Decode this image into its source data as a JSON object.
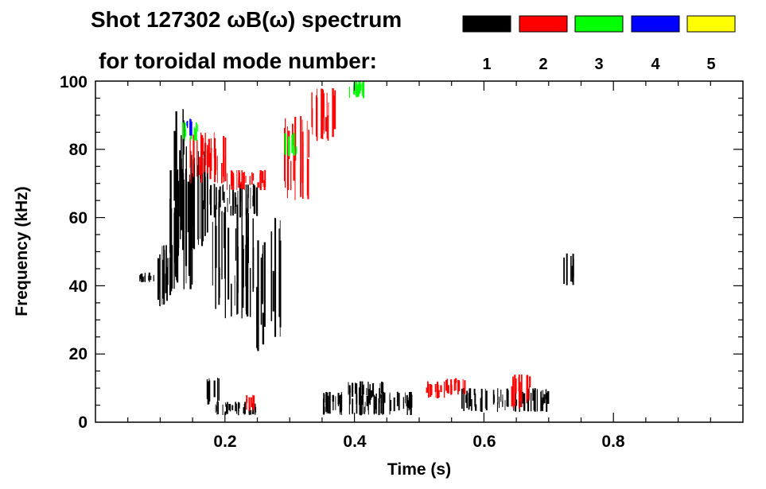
{
  "chart_data": {
    "type": "heatmap",
    "title_line1": "Shot 127302 ωB(ω) spectrum",
    "title_line2": "for toroidal mode number:",
    "xlabel": "Time (s)",
    "ylabel": "Frequency (kHz)",
    "xlim": [
      0.0,
      1.0
    ],
    "ylim": [
      0,
      100
    ],
    "x_ticks": [
      0.2,
      0.4,
      0.6,
      0.8
    ],
    "x_tick_labels": [
      "0.2",
      "0.4",
      "0.6",
      "0.8"
    ],
    "y_ticks": [
      0,
      20,
      40,
      60,
      80,
      100
    ],
    "y_tick_labels": [
      "0",
      "20",
      "40",
      "60",
      "80",
      "100"
    ],
    "legend": [
      {
        "label": "1",
        "color": "#000000"
      },
      {
        "label": "2",
        "color": "#ff0000"
      },
      {
        "label": "3",
        "color": "#00ff00"
      },
      {
        "label": "4",
        "color": "#0000ff"
      },
      {
        "label": "5",
        "color": "#ffff00"
      }
    ],
    "legend_placement": "top-right",
    "grid": false,
    "regions": [
      {
        "mode": 1,
        "t0": 0.065,
        "t1": 0.09,
        "f0": 41,
        "f1": 44
      },
      {
        "mode": 1,
        "t0": 0.09,
        "t1": 0.12,
        "f0": 34,
        "f1": 52
      },
      {
        "mode": 1,
        "t0": 0.11,
        "t1": 0.16,
        "f0": 38,
        "f1": 75
      },
      {
        "mode": 1,
        "t0": 0.12,
        "t1": 0.14,
        "f0": 55,
        "f1": 92
      },
      {
        "mode": 1,
        "t0": 0.14,
        "t1": 0.175,
        "f0": 50,
        "f1": 80
      },
      {
        "mode": 1,
        "t0": 0.175,
        "t1": 0.25,
        "f0": 60,
        "f1": 70
      },
      {
        "mode": 1,
        "t0": 0.18,
        "t1": 0.245,
        "f0": 30,
        "f1": 65
      },
      {
        "mode": 1,
        "t0": 0.245,
        "t1": 0.262,
        "f0": 20,
        "f1": 55
      },
      {
        "mode": 1,
        "t0": 0.268,
        "t1": 0.285,
        "f0": 25,
        "f1": 60
      },
      {
        "mode": 1,
        "t0": 0.17,
        "t1": 0.19,
        "f0": 5,
        "f1": 14
      },
      {
        "mode": 1,
        "t0": 0.185,
        "t1": 0.25,
        "f0": 2,
        "f1": 6
      },
      {
        "mode": 1,
        "t0": 0.35,
        "t1": 0.49,
        "f0": 2,
        "f1": 9
      },
      {
        "mode": 1,
        "t0": 0.385,
        "t1": 0.445,
        "f0": 5,
        "f1": 12
      },
      {
        "mode": 1,
        "t0": 0.56,
        "t1": 0.7,
        "f0": 3,
        "f1": 10
      },
      {
        "mode": 1,
        "t0": 0.72,
        "t1": 0.74,
        "f0": 40,
        "f1": 50
      },
      {
        "mode": 2,
        "t0": 0.14,
        "t1": 0.2,
        "f0": 70,
        "f1": 85
      },
      {
        "mode": 2,
        "t0": 0.2,
        "t1": 0.265,
        "f0": 68,
        "f1": 74
      },
      {
        "mode": 2,
        "t0": 0.29,
        "t1": 0.33,
        "f0": 65,
        "f1": 90
      },
      {
        "mode": 2,
        "t0": 0.33,
        "t1": 0.37,
        "f0": 82,
        "f1": 98
      },
      {
        "mode": 2,
        "t0": 0.51,
        "t1": 0.54,
        "f0": 7,
        "f1": 12
      },
      {
        "mode": 2,
        "t0": 0.54,
        "t1": 0.57,
        "f0": 8,
        "f1": 13
      },
      {
        "mode": 2,
        "t0": 0.64,
        "t1": 0.67,
        "f0": 4,
        "f1": 14
      },
      {
        "mode": 2,
        "t0": 0.23,
        "t1": 0.245,
        "f0": 3,
        "f1": 8
      },
      {
        "mode": 3,
        "t0": 0.13,
        "t1": 0.16,
        "f0": 82,
        "f1": 88
      },
      {
        "mode": 3,
        "t0": 0.29,
        "t1": 0.31,
        "f0": 78,
        "f1": 85
      },
      {
        "mode": 3,
        "t0": 0.39,
        "t1": 0.42,
        "f0": 95,
        "f1": 100
      },
      {
        "mode": 4,
        "t0": 0.14,
        "t1": 0.15,
        "f0": 84,
        "f1": 89
      }
    ]
  }
}
